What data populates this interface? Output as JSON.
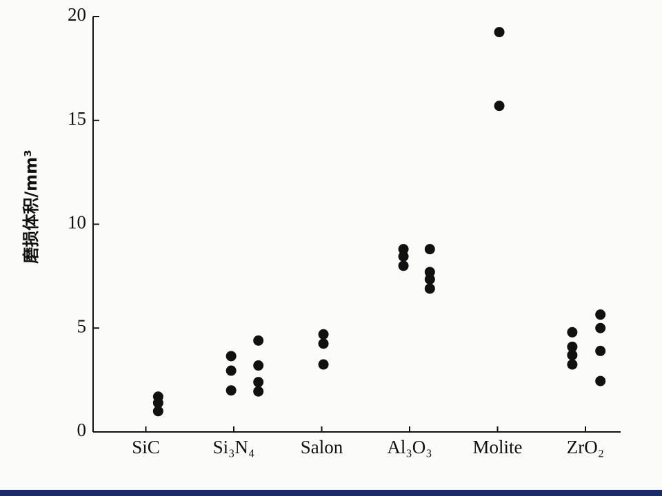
{
  "chart_data": {
    "type": "scatter",
    "y_label": "磨损体积/mm³",
    "xlim": [
      0.4,
      6.4
    ],
    "xticks": [
      {
        "value": 1,
        "label": "SiC"
      },
      {
        "value": 2,
        "label": "Si₃N₄"
      },
      {
        "value": 3,
        "label": "Salon"
      },
      {
        "value": 4,
        "label": "Al₃O₃"
      },
      {
        "value": 5,
        "label": "Molite"
      },
      {
        "value": 6,
        "label": "ZrO₂"
      }
    ],
    "ylim": [
      0,
      20
    ],
    "yticks": [
      0,
      5,
      10,
      15,
      20
    ],
    "color": "#111111",
    "x": [
      1.14,
      1.14,
      1.14,
      1.97,
      1.97,
      1.97,
      2.28,
      2.28,
      2.28,
      2.28,
      3.02,
      3.02,
      3.02,
      3.93,
      3.93,
      3.93,
      4.23,
      4.23,
      4.23,
      4.23,
      5.02,
      5.02,
      5.85,
      5.85,
      5.85,
      5.85,
      6.17,
      6.17,
      6.17,
      6.17
    ],
    "values": [
      1.7,
      1.4,
      1.0,
      3.65,
      2.95,
      2.0,
      4.4,
      3.2,
      2.4,
      1.95,
      4.7,
      4.25,
      3.25,
      8.8,
      8.45,
      8.0,
      8.8,
      7.7,
      7.35,
      6.9,
      19.25,
      15.7,
      4.8,
      4.1,
      3.7,
      3.25,
      5.65,
      5.0,
      3.9,
      2.45
    ]
  }
}
